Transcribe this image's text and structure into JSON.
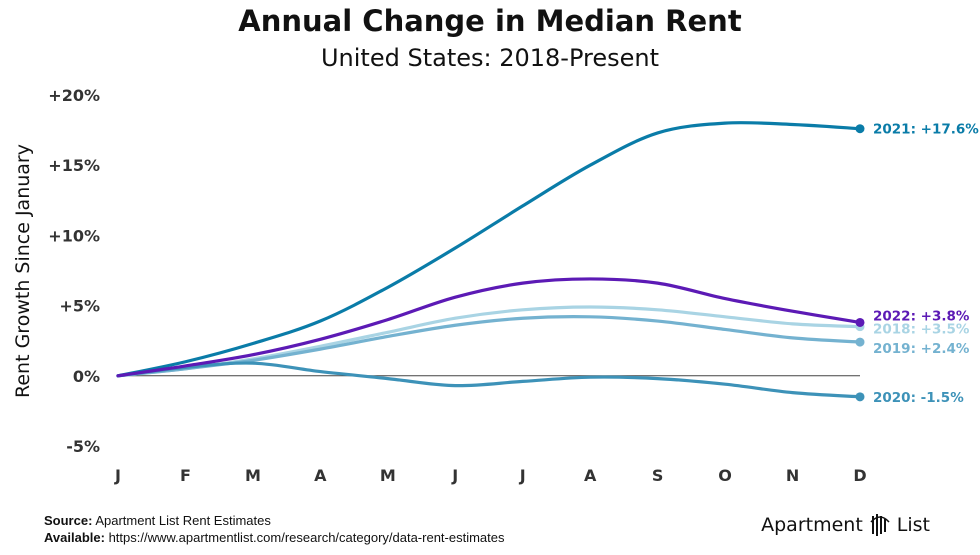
{
  "header": {
    "title": "Annual Change in Median Rent",
    "subtitle": "United States: 2018-Present"
  },
  "footer": {
    "source_label": "Source:",
    "source_text": "Apartment List Rent Estimates",
    "available_label": "Available:",
    "available_text": "https://www.apartmentlist.com/research/category/data-rent-estimates"
  },
  "brand": {
    "left": "Apartment",
    "right": "List",
    "logo_icon": "apartment-list-logo-icon"
  },
  "chart_data": {
    "type": "line",
    "title": "Annual Change in Median Rent",
    "subtitle": "United States: 2018-Present",
    "xlabel": "",
    "ylabel": "Rent Growth Since January",
    "categories": [
      "J",
      "F",
      "M",
      "A",
      "M",
      "J",
      "J",
      "A",
      "S",
      "O",
      "N",
      "D"
    ],
    "yticks": [
      -5,
      0,
      5,
      10,
      15,
      20
    ],
    "ytick_labels": [
      "-5%",
      "0%",
      "+5%",
      "+10%",
      "+15%",
      "+20%"
    ],
    "ylim": [
      -5.5,
      20.5
    ],
    "zero_line": true,
    "series": [
      {
        "name": "2018",
        "color": "#a9d4e4",
        "end_label": "2018: +3.5%",
        "values": [
          0,
          0.5,
          1.2,
          2.1,
          3.1,
          4.1,
          4.7,
          4.9,
          4.7,
          4.2,
          3.7,
          3.5
        ]
      },
      {
        "name": "2019",
        "color": "#74b2d0",
        "end_label": "2019: +2.4%",
        "values": [
          0,
          0.5,
          1.1,
          1.9,
          2.8,
          3.6,
          4.1,
          4.2,
          3.9,
          3.3,
          2.7,
          2.4
        ]
      },
      {
        "name": "2020",
        "color": "#3d92b8",
        "end_label": "2020: -1.5%",
        "values": [
          0,
          0.6,
          0.9,
          0.3,
          -0.2,
          -0.7,
          -0.4,
          -0.1,
          -0.2,
          -0.6,
          -1.2,
          -1.5
        ]
      },
      {
        "name": "2021",
        "color": "#0a7ca8",
        "end_label": "2021: +17.6%",
        "values": [
          0,
          1.0,
          2.3,
          3.9,
          6.3,
          9.1,
          12.1,
          15.0,
          17.3,
          18.0,
          17.9,
          17.6
        ]
      },
      {
        "name": "2022",
        "color": "#5c1ab5",
        "end_label": "2022: +3.8%",
        "values": [
          0,
          0.7,
          1.5,
          2.6,
          4.0,
          5.6,
          6.6,
          6.9,
          6.6,
          5.5,
          4.6,
          3.8
        ]
      }
    ]
  }
}
